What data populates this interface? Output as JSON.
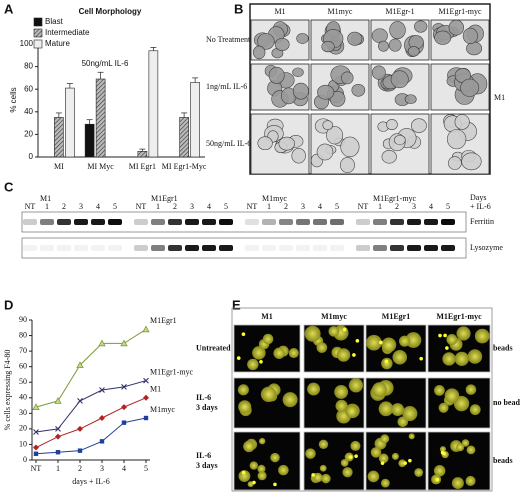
{
  "chart_data": [
    {
      "type": "bar",
      "panel": "A",
      "title": "Cell Morphology",
      "annotation": "50ng/mL IL-6",
      "y_label": "% cells",
      "categories": [
        "MI",
        "MI Myc",
        "MI Egr1",
        "MI Egr1-Myc"
      ],
      "series": [
        {
          "name": "Blast",
          "color": "#111111",
          "values": [
            0,
            29,
            0,
            0
          ],
          "errors": [
            0,
            4,
            0,
            0
          ]
        },
        {
          "name": "Intermediate",
          "color": "#8a8a8a",
          "hatch": true,
          "values": [
            35,
            69,
            5,
            35
          ],
          "errors": [
            4,
            6,
            2,
            4
          ]
        },
        {
          "name": "Mature",
          "color": "#eeeeee",
          "values": [
            61,
            0,
            94,
            66
          ],
          "errors": [
            4,
            0,
            3,
            4
          ]
        }
      ],
      "ylim": [
        0,
        100
      ],
      "yticks": [
        0,
        20,
        40,
        60,
        80,
        100
      ]
    },
    {
      "type": "line",
      "panel": "D",
      "y_label": "% cells expressing F4-80",
      "x_label": "days + IL-6",
      "categories": [
        "NT",
        "1",
        "2",
        "3",
        "4",
        "5"
      ],
      "series": [
        {
          "name": "M1Egr1",
          "color": "#7a9a3a",
          "marker": "triangle",
          "values": [
            34,
            38,
            61,
            75,
            75,
            84
          ]
        },
        {
          "name": "M1Egr1-myc",
          "color": "#333366",
          "marker": "x",
          "values": [
            18,
            20,
            38,
            45,
            47,
            51
          ]
        },
        {
          "name": "M1",
          "color": "#b22222",
          "marker": "diamond",
          "values": [
            8,
            15,
            20,
            27,
            34,
            40
          ]
        },
        {
          "name": "M1myc",
          "color": "#1f3f9f",
          "marker": "square",
          "values": [
            4,
            5,
            6,
            12,
            24,
            27
          ]
        }
      ],
      "ylim": [
        0,
        90
      ],
      "yticks": [
        0,
        10,
        20,
        30,
        40,
        50,
        60,
        70,
        80,
        90
      ]
    }
  ],
  "micrographs": {
    "panel": "B",
    "columns": [
      "M1",
      "M1myc",
      "M1Egr-1",
      "M1Egr1-myc"
    ],
    "rows": [
      "No Treatment",
      "1ng/mL IL-6",
      "50ng/mL IL-6"
    ],
    "side_label": "M1"
  },
  "blot": {
    "panel": "C",
    "groups": [
      {
        "name": "M1",
        "lanes": [
          "NT",
          "1",
          "2",
          "3",
          "4",
          "5"
        ]
      },
      {
        "name": "M1Egr1",
        "lanes": [
          "NT",
          "1",
          "2",
          "3",
          "4",
          "5"
        ]
      },
      {
        "name": "M1myc",
        "lanes": [
          "NT",
          "1",
          "2",
          "3",
          "4",
          "5"
        ]
      },
      {
        "name": "M1Egr1-myc",
        "lanes": [
          "NT",
          "1",
          "2",
          "3",
          "4",
          "5"
        ]
      }
    ],
    "days_label": "Days",
    "treatment_label": "+ IL-6",
    "bands": [
      "Ferritin",
      "Lysozyme"
    ]
  },
  "fluorescence": {
    "panel": "E",
    "columns": [
      "M1",
      "M1myc",
      "M1Egr1",
      "M1Egr1-myc"
    ],
    "rows": [
      {
        "label": "Untreated",
        "side": "beads"
      },
      {
        "label": "IL-6\n3 days",
        "side": "no beads"
      },
      {
        "label": "IL-6\n3 days",
        "side": "beads"
      }
    ]
  }
}
